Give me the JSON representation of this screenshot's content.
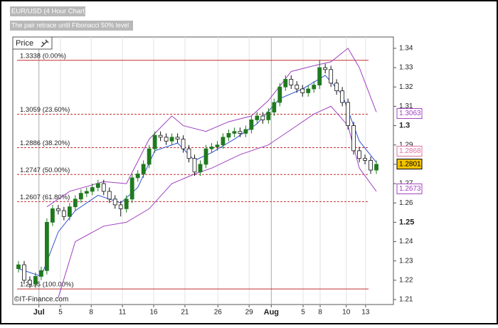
{
  "chart_data": {
    "type": "candlestick",
    "title": "EUR/USD (4 Hour Chart)",
    "subtitle": "The pair retrace until Fibonacci 50% level",
    "legend_label": "Price",
    "credit": "©IT-Finance.com",
    "up_color": "#1f7a1f",
    "down_color": "#111111",
    "open": [
      1.226,
      1.228,
      1.22,
      1.218,
      1.222,
      1.225,
      1.25,
      1.257,
      1.256,
      1.253,
      1.258,
      1.262,
      1.265,
      1.266,
      1.268,
      1.27,
      1.266,
      1.262,
      1.259,
      1.257,
      1.262,
      1.273,
      1.275,
      1.28,
      1.288,
      1.295,
      1.294,
      1.292,
      1.294,
      1.293,
      1.288,
      1.283,
      1.276,
      1.28,
      1.288,
      1.289,
      1.29,
      1.294,
      1.296,
      1.297,
      1.296,
      1.298,
      1.303,
      1.305,
      1.303,
      1.307,
      1.312,
      1.32,
      1.324,
      1.321,
      1.319,
      1.317,
      1.319,
      1.321,
      1.33,
      1.329,
      1.322,
      1.318,
      1.312,
      1.3,
      1.287,
      1.283,
      1.282,
      1.277
    ],
    "high": [
      1.23,
      1.23,
      1.222,
      1.224,
      1.227,
      1.252,
      1.259,
      1.259,
      1.258,
      1.26,
      1.264,
      1.267,
      1.268,
      1.27,
      1.272,
      1.272,
      1.268,
      1.264,
      1.261,
      1.264,
      1.275,
      1.277,
      1.282,
      1.29,
      1.297,
      1.297,
      1.296,
      1.296,
      1.296,
      1.295,
      1.29,
      1.285,
      1.282,
      1.29,
      1.291,
      1.292,
      1.296,
      1.298,
      1.299,
      1.299,
      1.3,
      1.305,
      1.307,
      1.307,
      1.309,
      1.314,
      1.322,
      1.326,
      1.326,
      1.323,
      1.321,
      1.321,
      1.323,
      1.334,
      1.332,
      1.331,
      1.324,
      1.32,
      1.314,
      1.302,
      1.289,
      1.285,
      1.284,
      1.282
    ],
    "low": [
      1.224,
      1.218,
      1.216,
      1.216,
      1.22,
      1.223,
      1.248,
      1.254,
      1.251,
      1.251,
      1.256,
      1.26,
      1.263,
      1.264,
      1.266,
      1.264,
      1.26,
      1.257,
      1.253,
      1.255,
      1.26,
      1.271,
      1.273,
      1.278,
      1.286,
      1.292,
      1.29,
      1.29,
      1.291,
      1.286,
      1.281,
      1.274,
      1.274,
      1.278,
      1.286,
      1.287,
      1.288,
      1.292,
      1.294,
      1.294,
      1.294,
      1.296,
      1.301,
      1.301,
      1.301,
      1.305,
      1.31,
      1.318,
      1.319,
      1.317,
      1.315,
      1.315,
      1.317,
      1.319,
      1.327,
      1.32,
      1.316,
      1.31,
      1.298,
      1.285,
      1.281,
      1.28,
      1.275,
      1.275
    ],
    "close": [
      1.228,
      1.22,
      1.218,
      1.222,
      1.225,
      1.25,
      1.257,
      1.256,
      1.253,
      1.258,
      1.262,
      1.265,
      1.266,
      1.268,
      1.27,
      1.266,
      1.262,
      1.259,
      1.257,
      1.262,
      1.273,
      1.275,
      1.28,
      1.288,
      1.295,
      1.294,
      1.292,
      1.294,
      1.293,
      1.288,
      1.283,
      1.276,
      1.28,
      1.288,
      1.289,
      1.29,
      1.294,
      1.296,
      1.297,
      1.296,
      1.298,
      1.303,
      1.305,
      1.303,
      1.307,
      1.312,
      1.32,
      1.324,
      1.321,
      1.319,
      1.317,
      1.319,
      1.321,
      1.33,
      1.329,
      1.322,
      1.318,
      1.312,
      1.3,
      1.287,
      1.283,
      1.282,
      1.277,
      1.28
    ],
    "overlays": [
      {
        "color": "#a040c0",
        "x": [
          5,
          9,
          15,
          19,
          23,
          27,
          29,
          33,
          37,
          41,
          44,
          48,
          52,
          55,
          58,
          60,
          63
        ],
        "values": [
          1.258,
          1.266,
          1.271,
          1.27,
          1.293,
          1.305,
          1.3,
          1.297,
          1.302,
          1.305,
          1.313,
          1.328,
          1.331,
          1.333,
          1.34,
          1.33,
          1.307
        ]
      },
      {
        "color": "#a040c0",
        "x": [
          7,
          10,
          15,
          19,
          23,
          27,
          31,
          34,
          39,
          44,
          48,
          52,
          55,
          58,
          60,
          63
        ],
        "values": [
          1.211,
          1.24,
          1.248,
          1.25,
          1.257,
          1.27,
          1.275,
          1.278,
          1.285,
          1.29,
          1.298,
          1.306,
          1.31,
          1.3,
          1.278,
          1.266
        ]
      },
      {
        "color": "#3050d0",
        "x": [
          0,
          4,
          7,
          10,
          14,
          18,
          21,
          24,
          28,
          31,
          34,
          38,
          42,
          46,
          50,
          54,
          57,
          60,
          63
        ],
        "values": [
          1.226,
          1.222,
          1.245,
          1.256,
          1.264,
          1.26,
          1.268,
          1.287,
          1.291,
          1.282,
          1.286,
          1.293,
          1.301,
          1.314,
          1.319,
          1.326,
          1.316,
          1.292,
          1.281
        ]
      }
    ],
    "fib_levels": [
      {
        "value": 1.3338,
        "label": "1.3338 (0.00%)",
        "dashed": false
      },
      {
        "value": 1.3059,
        "label": "1.3059 (23.60%)",
        "dashed": true
      },
      {
        "value": 1.2886,
        "label": "1.2886 (38.20%)",
        "dashed": true
      },
      {
        "value": 1.2747,
        "label": "1.2747 (50.00%)",
        "dashed": true
      },
      {
        "value": 1.2607,
        "label": "1.2607 (61.80%)",
        "dashed": true
      },
      {
        "value": 1.2155,
        "label": "1.2155 (100.00%)",
        "dashed": false
      }
    ],
    "fib_color": "#c03030",
    "price_labels": [
      {
        "value": 1.3063,
        "color": "#a040c0",
        "fill": "#ffffff"
      },
      {
        "value": 1.2868,
        "color": "#e070a0",
        "fill": "#ffffff"
      },
      {
        "value": 1.2801,
        "color": "#000000",
        "fill": "#f5c400"
      },
      {
        "value": 1.2673,
        "color": "#a040c0",
        "fill": "#ffffff"
      }
    ],
    "xlim": [
      -1,
      66
    ],
    "xticks": [
      {
        "value": 3.6,
        "label": "Jul"
      },
      {
        "value": 7.4,
        "label": "5"
      },
      {
        "value": 12.8,
        "label": "8"
      },
      {
        "value": 18.3,
        "label": "11"
      },
      {
        "value": 23.8,
        "label": "16"
      },
      {
        "value": 29.3,
        "label": "21"
      },
      {
        "value": 35.1,
        "label": "26"
      },
      {
        "value": 40.6,
        "label": "29"
      },
      {
        "value": 44.5,
        "label": "Aug"
      },
      {
        "value": 50.1,
        "label": "5"
      },
      {
        "value": 53.1,
        "label": "8"
      },
      {
        "value": 57.7,
        "label": "10"
      },
      {
        "value": 61.1,
        "label": "13"
      }
    ],
    "ylim": [
      1.20744,
      1.34586
    ],
    "yticks": [
      1.34,
      1.33,
      1.32,
      1.31,
      1.3,
      1.29,
      1.28,
      1.27,
      1.26,
      1.25,
      1.24,
      1.23,
      1.22,
      1.21
    ],
    "grid": "x"
  }
}
